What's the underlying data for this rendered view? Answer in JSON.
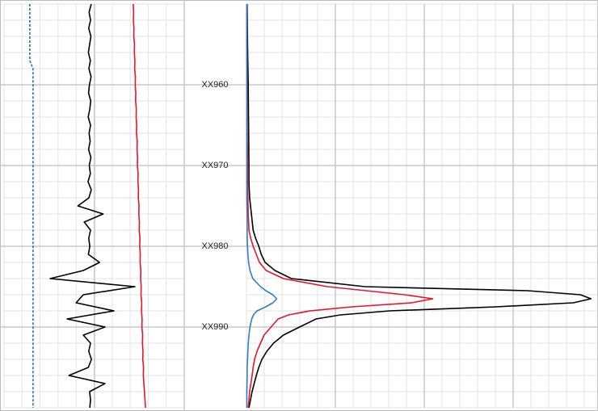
{
  "chart_data": [
    {
      "type": "line",
      "orientation": "vertical",
      "xlim": [
        0,
        100
      ],
      "ylim": [
        950,
        1000
      ],
      "depth": [
        950,
        951,
        952,
        953,
        954,
        955,
        956,
        957,
        958,
        959,
        960,
        961,
        962,
        963,
        964,
        965,
        966,
        967,
        968,
        969,
        970,
        971,
        972,
        973,
        974,
        975,
        976,
        977,
        978,
        979,
        980,
        981,
        982,
        983,
        984,
        985,
        986,
        987,
        988,
        989,
        990,
        991,
        992,
        993,
        994,
        995,
        996,
        997,
        998,
        999,
        1000
      ],
      "series": [
        {
          "color": "#1f6fb5",
          "dash": true,
          "values": [
            14.3,
            14.3,
            14.3,
            14.3,
            14.3,
            14.3,
            14.3,
            14.3,
            16.1,
            16.1,
            16.1,
            16.1,
            16.1,
            16.1,
            16.1,
            16.1,
            16.1,
            16.1,
            16.1,
            16.1,
            16.1,
            16.1,
            16.1,
            16.1,
            16.1,
            16.1,
            16.1,
            16.1,
            16.1,
            16.1,
            16.1,
            16.1,
            16.1,
            16.1,
            16.1,
            16.1,
            16.1,
            16.1,
            16.1,
            16.1,
            16.1,
            16.1,
            16.1,
            16.1,
            16.1,
            16.1,
            16.1,
            16.1,
            16.1,
            16.1,
            16.1
          ]
        },
        {
          "color": "#000000",
          "values": [
            48.4,
            47.2,
            48.0,
            47.0,
            48.2,
            47.5,
            46.8,
            47.9,
            47.1,
            48.3,
            47.4,
            46.9,
            48.1,
            47.6,
            46.7,
            48.0,
            47.2,
            47.8,
            46.9,
            48.2,
            47.3,
            47.9,
            46.6,
            48.4,
            47.1,
            41.0,
            55.0,
            44.5,
            48.0,
            47.0,
            47.6,
            46.8,
            53.0,
            44.0,
            25.6,
            72.6,
            44.0,
            40.0,
            61.0,
            35.0,
            56.0,
            44.0,
            48.0,
            47.0,
            48.5,
            46.8,
            36.0,
            56.0,
            47.5,
            48.0,
            47.6
          ]
        },
        {
          "color": "#e8142a",
          "values": [
            71.7,
            71.9,
            71.8,
            72.1,
            72.0,
            72.4,
            72.3,
            72.6,
            72.5,
            72.9,
            72.8,
            73.1,
            73.0,
            73.4,
            73.3,
            73.6,
            73.5,
            73.9,
            73.8,
            74.1,
            74.0,
            74.4,
            74.3,
            74.6,
            74.5,
            74.9,
            74.8,
            75.1,
            75.0,
            75.4,
            75.3,
            75.6,
            75.5,
            75.9,
            75.8,
            76.1,
            76.0,
            76.4,
            76.3,
            76.6,
            76.5,
            76.9,
            76.8,
            77.1,
            77.0,
            77.4,
            77.3,
            77.6,
            77.9,
            78.2,
            78.5
          ]
        }
      ]
    },
    {
      "type": "line",
      "orientation": "vertical",
      "xlim": [
        0,
        100
      ],
      "ylim": [
        950,
        1000
      ],
      "yticks": [
        {
          "value": 960,
          "label": "XX960"
        },
        {
          "value": 970,
          "label": "XX970"
        },
        {
          "value": 980,
          "label": "XX980"
        },
        {
          "value": 990,
          "label": "XX990"
        }
      ],
      "depth": [
        950,
        955,
        960,
        965,
        970,
        972,
        974,
        976,
        978,
        979,
        980,
        981,
        982,
        983,
        984,
        985,
        985.5,
        986,
        986.5,
        987,
        987.5,
        988,
        988.5,
        989,
        990,
        991,
        992,
        993,
        994,
        995,
        996,
        998,
        1000
      ],
      "series": [
        {
          "color": "#000000",
          "values": [
            0.2,
            0.3,
            0.5,
            0.6,
            0.7,
            0.7,
            0.9,
            1.4,
            1.9,
            2.6,
            3.5,
            4.2,
            5.3,
            8.1,
            12.8,
            33.7,
            80,
            95,
            98,
            93,
            71,
            40.7,
            26.7,
            19.8,
            15.1,
            10.5,
            7.7,
            5.8,
            4.4,
            3.5,
            2.8,
            1.6,
            0.7
          ]
        },
        {
          "color": "#e8142a",
          "values": [
            0.1,
            0.1,
            0.2,
            0.2,
            0.3,
            0.3,
            0.4,
            0.5,
            0.7,
            1.2,
            1.9,
            2.8,
            3.7,
            5.6,
            10.5,
            23,
            34,
            45,
            53,
            47,
            30,
            18,
            12,
            9,
            7,
            5,
            4,
            3,
            2.3,
            1.9,
            1.6,
            0.9,
            0.5
          ]
        },
        {
          "color": "#2a7fc8",
          "values": [
            0.1,
            0.1,
            0.1,
            0.1,
            0.1,
            0.1,
            0.1,
            0.2,
            0.2,
            0.2,
            0.3,
            0.4,
            0.6,
            1,
            1.8,
            4,
            5.5,
            7.5,
            8.6,
            7.5,
            5.5,
            3,
            2,
            1.5,
            1,
            0.7,
            0.5,
            0.4,
            0.3,
            0.2,
            0.2,
            0.1,
            0.1
          ]
        }
      ]
    }
  ]
}
